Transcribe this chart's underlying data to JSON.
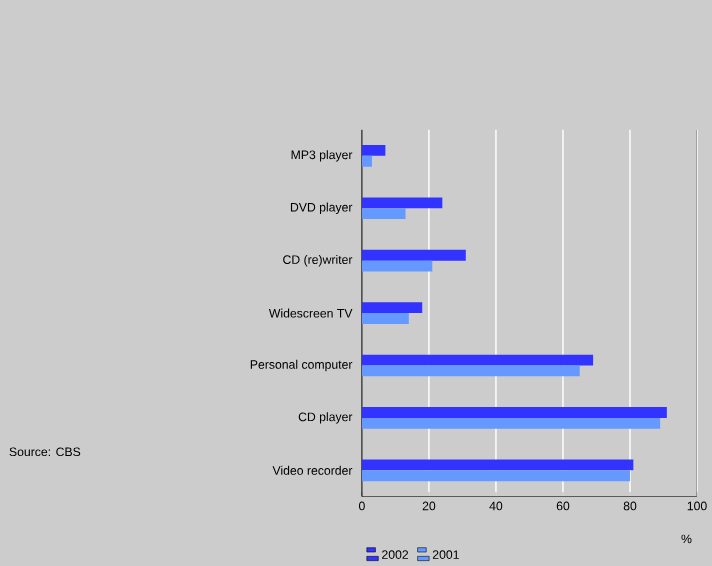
{
  "chart_data": {
    "type": "bar",
    "orientation": "horizontal",
    "categories": [
      "MP3 player",
      "DVD player",
      "CD (re)writer",
      "Widescreen TV",
      "Personal computer",
      "CD player",
      "Video recorder"
    ],
    "series": [
      {
        "name": "2002",
        "color": "#3333ff",
        "values": [
          7,
          24,
          31,
          18,
          69,
          91,
          81
        ]
      },
      {
        "name": "2001",
        "color": "#6699ff",
        "values": [
          3,
          13,
          21,
          14,
          65,
          89,
          80
        ]
      }
    ],
    "xlabel": "%",
    "xlim": [
      0,
      100
    ],
    "xticks": [
      0,
      20,
      40,
      60,
      80,
      100
    ],
    "grid": "x",
    "legend": "bottom",
    "annotations": [
      "Source: CBS"
    ]
  }
}
